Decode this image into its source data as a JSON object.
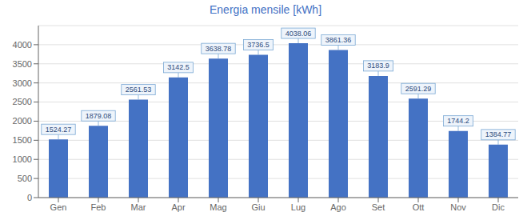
{
  "chart_data": {
    "type": "bar",
    "title": "Energia mensile [kWh]",
    "categories": [
      "Gen",
      "Feb",
      "Mar",
      "Apr",
      "Mag",
      "Giu",
      "Lug",
      "Ago",
      "Set",
      "Ott",
      "Nov",
      "Dic"
    ],
    "values": [
      1524.27,
      1879.08,
      2561.53,
      3142.5,
      3638.78,
      3736.5,
      4038.06,
      3861.36,
      3183.9,
      2591.29,
      1744.2,
      1384.77
    ],
    "color": "#4472C4",
    "ylim": [
      0,
      4500
    ],
    "yticks": [
      0,
      500,
      1000,
      1500,
      2000,
      2500,
      3000,
      3500,
      4000
    ],
    "grid": true,
    "data_labels": true
  }
}
